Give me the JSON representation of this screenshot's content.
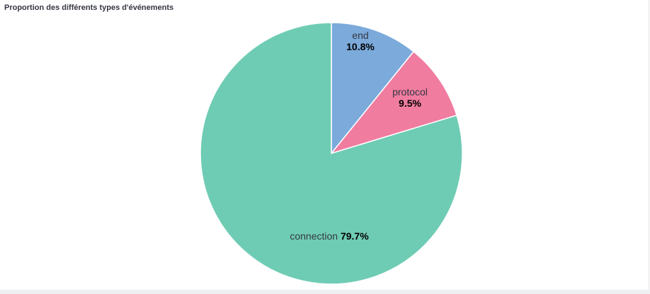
{
  "panel": {
    "title": "Proportion des différents types d'événements"
  },
  "chart_data": {
    "type": "pie",
    "start": "top",
    "direction": "clockwise",
    "categories": [
      "end",
      "protocol",
      "connection"
    ],
    "values": [
      10.8,
      9.5,
      79.7
    ],
    "value_labels": [
      "10.8%",
      "9.5%",
      "79.7%"
    ],
    "colors": [
      "#7BAADB",
      "#F07CA0",
      "#6FCCB4"
    ],
    "slice_border_color": "#ffffff",
    "legend": "none"
  }
}
